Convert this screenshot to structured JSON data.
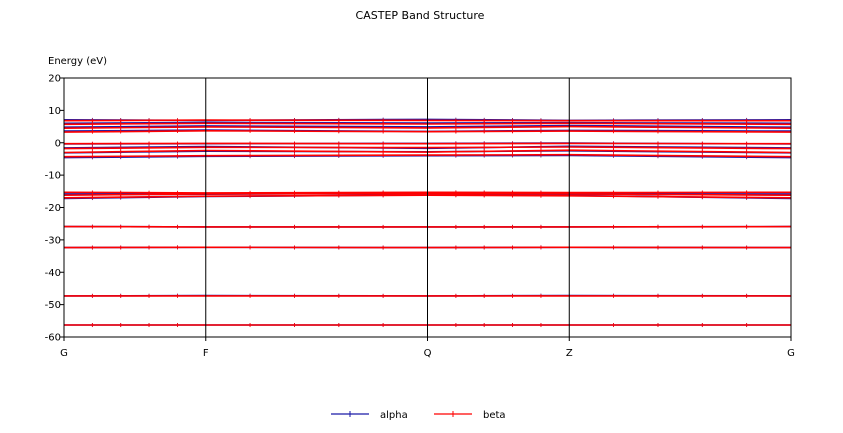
{
  "chart_data": {
    "type": "line",
    "title": "CASTEP Band Structure",
    "ylabel": "Energy (eV)",
    "xlabel": "",
    "ylim": [
      -60,
      20
    ],
    "yticks": [
      20,
      10,
      0,
      -10,
      -20,
      -30,
      -40,
      -50,
      -60
    ],
    "kpoints": [
      {
        "label": "G",
        "x": 0.0
      },
      {
        "label": "F",
        "x": 0.195
      },
      {
        "label": "Q",
        "x": 0.5
      },
      {
        "label": "Z",
        "x": 0.695
      },
      {
        "label": "G",
        "x": 1.0
      }
    ],
    "grid": "vertical lines at high-symmetry points",
    "legend": "bottom-center",
    "series": [
      {
        "name": "alpha",
        "color": "#1a1aa8",
        "bands": [
          [
            -56.3,
            -56.3,
            -56.3,
            -56.3,
            -56.3
          ],
          [
            -47.3,
            -47.2,
            -47.3,
            -47.2,
            -47.3
          ],
          [
            -32.4,
            -32.3,
            -32.4,
            -32.3,
            -32.4
          ],
          [
            -25.9,
            -26.0,
            -26.0,
            -26.0,
            -25.9
          ],
          [
            -17.2,
            -16.6,
            -16.1,
            -16.3,
            -17.2
          ],
          [
            -16.0,
            -15.9,
            -15.6,
            -15.9,
            -16.0
          ],
          [
            -15.5,
            -15.7,
            -15.4,
            -15.5,
            -15.5
          ],
          [
            -4.6,
            -4.2,
            -4.0,
            -3.9,
            -4.6
          ],
          [
            -3.1,
            -2.6,
            -2.8,
            -2.5,
            -3.1
          ],
          [
            -1.6,
            -1.2,
            -1.7,
            -1.1,
            -1.6
          ],
          [
            -0.4,
            -0.3,
            -0.2,
            -0.1,
            -0.4
          ],
          [
            3.6,
            3.9,
            3.5,
            3.8,
            3.6
          ],
          [
            4.8,
            5.2,
            4.9,
            5.3,
            4.8
          ],
          [
            6.0,
            6.3,
            6.1,
            6.2,
            6.0
          ],
          [
            7.1,
            6.9,
            7.2,
            6.9,
            7.1
          ]
        ]
      },
      {
        "name": "beta",
        "color": "#ff0000",
        "bands": [
          [
            -56.3,
            -56.3,
            -56.3,
            -56.3,
            -56.3
          ],
          [
            -47.3,
            -47.3,
            -47.3,
            -47.3,
            -47.3
          ],
          [
            -32.4,
            -32.3,
            -32.4,
            -32.3,
            -32.4
          ],
          [
            -25.9,
            -26.0,
            -26.0,
            -26.0,
            -25.9
          ],
          [
            -17.0,
            -16.5,
            -16.2,
            -16.4,
            -17.0
          ],
          [
            -16.2,
            -15.8,
            -15.7,
            -15.8,
            -16.2
          ],
          [
            -15.3,
            -15.5,
            -15.3,
            -15.4,
            -15.3
          ],
          [
            -4.3,
            -4.0,
            -3.8,
            -3.7,
            -4.3
          ],
          [
            -3.0,
            -2.4,
            -2.9,
            -2.3,
            -3.0
          ],
          [
            -1.8,
            -1.4,
            -1.5,
            -1.3,
            -1.8
          ],
          [
            -0.3,
            -0.2,
            -0.3,
            -0.2,
            -0.3
          ],
          [
            3.3,
            3.7,
            3.4,
            3.6,
            3.3
          ],
          [
            4.5,
            4.9,
            4.6,
            5.0,
            4.5
          ],
          [
            5.7,
            6.0,
            5.8,
            6.0,
            5.7
          ],
          [
            6.8,
            7.0,
            6.9,
            6.8,
            6.8
          ]
        ]
      }
    ]
  }
}
